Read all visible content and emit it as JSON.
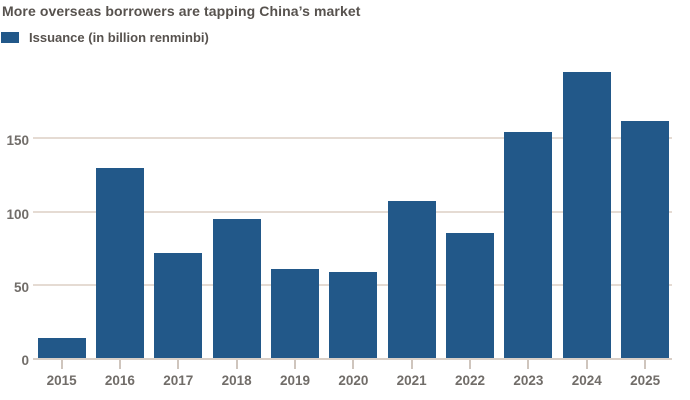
{
  "colors": {
    "bar": "#225889",
    "gridline": "#e5dbd3",
    "axis_line": "#d9cfc7",
    "tick": "#cfc5bd",
    "title_text": "#57524e",
    "axis_text": "#716d69",
    "background": "#ffffff"
  },
  "legend": {
    "label": "Issuance (in billion renminbi)"
  },
  "chart_data": {
    "type": "bar",
    "title": "More overseas borrowers are tapping China’s market",
    "categories": [
      "2015",
      "2016",
      "2017",
      "2018",
      "2019",
      "2020",
      "2021",
      "2022",
      "2023",
      "2024",
      "2025"
    ],
    "values": [
      14,
      130,
      72,
      95,
      61,
      59,
      107,
      85,
      154,
      195,
      162
    ],
    "series_name": "Issuance (in billion renminbi)",
    "xlabel": "",
    "ylabel": "",
    "yticks": [
      0,
      50,
      100,
      150
    ],
    "ylim": [
      0,
      200
    ],
    "grid": "horizontal",
    "legend_position": "top-left"
  }
}
